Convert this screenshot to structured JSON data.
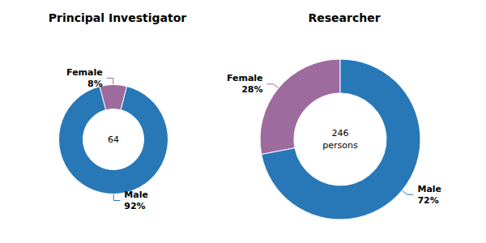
{
  "chart_data": [
    {
      "type": "pie",
      "title": "Principal Investigator",
      "categories": [
        "Female",
        "Male"
      ],
      "values": [
        8,
        92
      ],
      "value_labels": [
        "8%",
        "92%"
      ],
      "colors": [
        "#9e6b9e",
        "#2878b8"
      ],
      "data_labels": true,
      "annotations": [
        "64"
      ]
    },
    {
      "type": "pie",
      "title": "Researcher",
      "categories": [
        "Female",
        "Male"
      ],
      "values": [
        28,
        72
      ],
      "value_labels": [
        "28%",
        "72%"
      ],
      "colors": [
        "#9e6b9e",
        "#2878b8"
      ],
      "data_labels": true,
      "annotations": [
        "246\npersons"
      ]
    }
  ]
}
